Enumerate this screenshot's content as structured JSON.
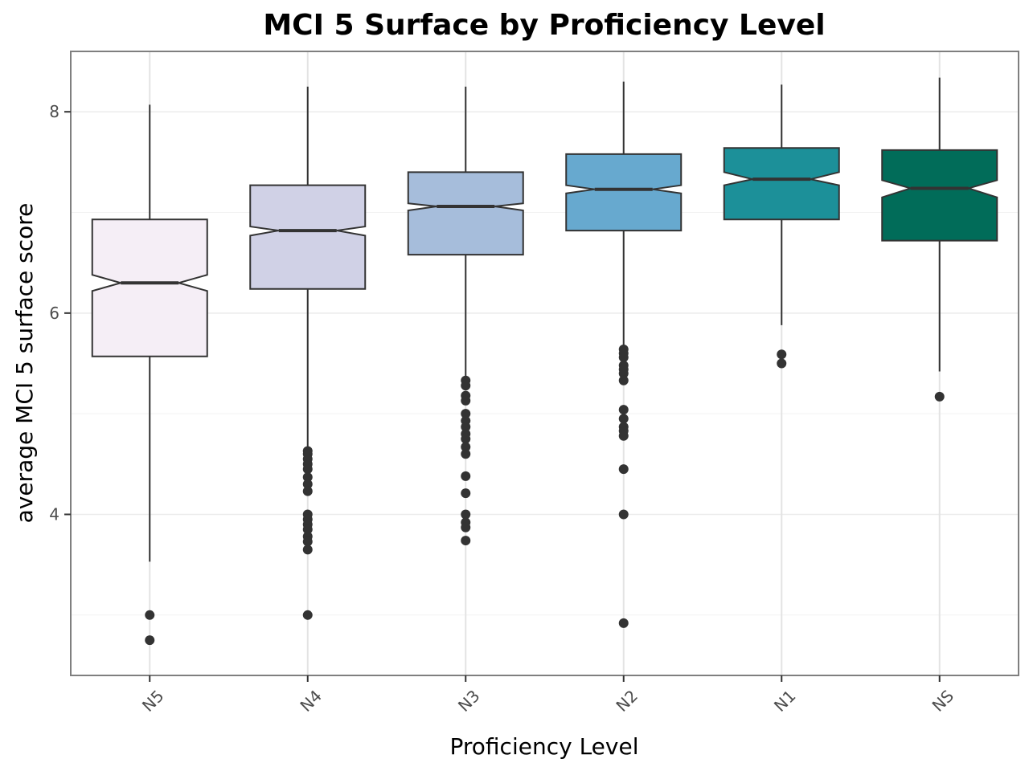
{
  "chart_data": {
    "type": "boxplot",
    "title": "MCI 5 Surface by Proficiency Level",
    "xlabel": "Proficiency Level",
    "ylabel": "average MCI 5 surface score",
    "ylim": [
      2.4,
      8.6
    ],
    "yticks": [
      4,
      6,
      8
    ],
    "grid": true,
    "notched": true,
    "categories": [
      "N5",
      "N4",
      "N3",
      "N2",
      "N1",
      "NS"
    ],
    "boxes": [
      {
        "category": "N5",
        "color": "#F5EEF6",
        "whisker_low": 3.53,
        "q1": 5.57,
        "median": 6.3,
        "notch_low": 6.22,
        "notch_high": 6.38,
        "q3": 6.93,
        "whisker_high": 8.07,
        "outliers": [
          3.0,
          2.75
        ]
      },
      {
        "category": "N4",
        "color": "#D0D1E6",
        "whisker_low": 4.67,
        "q1": 6.24,
        "median": 6.82,
        "notch_low": 6.77,
        "notch_high": 6.86,
        "q3": 7.27,
        "whisker_high": 8.25,
        "outliers": [
          4.63,
          4.6,
          4.55,
          4.5,
          4.45,
          4.37,
          4.3,
          4.23,
          4.0,
          3.95,
          3.9,
          3.85,
          3.78,
          3.73,
          3.65,
          3.0
        ]
      },
      {
        "category": "N3",
        "color": "#A6BDDB",
        "whisker_low": 5.36,
        "q1": 6.58,
        "median": 7.06,
        "notch_low": 7.02,
        "notch_high": 7.09,
        "q3": 7.4,
        "whisker_high": 8.25,
        "outliers": [
          5.33,
          5.28,
          5.18,
          5.13,
          5.0,
          4.93,
          4.87,
          4.8,
          4.75,
          4.67,
          4.6,
          4.38,
          4.21,
          4.0,
          3.92,
          3.87,
          3.74
        ]
      },
      {
        "category": "N2",
        "color": "#67A9CF",
        "whisker_low": 5.66,
        "q1": 6.82,
        "median": 7.23,
        "notch_low": 7.19,
        "notch_high": 7.27,
        "q3": 7.58,
        "whisker_high": 8.3,
        "outliers": [
          5.64,
          5.6,
          5.56,
          5.48,
          5.44,
          5.4,
          5.33,
          5.04,
          4.95,
          4.87,
          4.83,
          4.78,
          4.45,
          4.0,
          2.92
        ]
      },
      {
        "category": "N1",
        "color": "#1C9099",
        "whisker_low": 5.88,
        "q1": 6.93,
        "median": 7.33,
        "notch_low": 7.27,
        "notch_high": 7.4,
        "q3": 7.64,
        "whisker_high": 8.27,
        "outliers": [
          5.59,
          5.5
        ]
      },
      {
        "category": "NS",
        "color": "#016C59",
        "whisker_low": 5.42,
        "q1": 6.72,
        "median": 7.24,
        "notch_low": 7.15,
        "notch_high": 7.32,
        "q3": 7.62,
        "whisker_high": 8.34,
        "outliers": [
          5.17
        ]
      }
    ]
  }
}
